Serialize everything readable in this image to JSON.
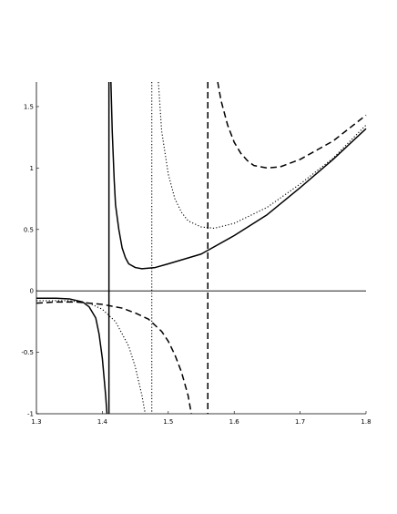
{
  "chart_data": {
    "type": "line",
    "title": "",
    "xlabel": "",
    "ylabel": "",
    "xlim": [
      1.3,
      1.8
    ],
    "ylim": [
      -1,
      1.7
    ],
    "x_ticks": [
      {
        "value": 1.3,
        "label": "1.3"
      },
      {
        "value": 1.4,
        "label": "1.4"
      },
      {
        "value": 1.5,
        "label": "1.5"
      },
      {
        "value": 1.6,
        "label": "1.6"
      },
      {
        "value": 1.7,
        "label": "1.7"
      },
      {
        "value": 1.8,
        "label": "1.8"
      }
    ],
    "y_ticks": [
      {
        "value": -1,
        "label": "-1"
      },
      {
        "value": -0.5,
        "label": "-0.5"
      },
      {
        "value": 0,
        "label": "0"
      },
      {
        "value": 0.5,
        "label": "0.5"
      },
      {
        "value": 1,
        "label": "1"
      },
      {
        "value": 1.5,
        "label": "1.5"
      }
    ],
    "grid": false,
    "legend": "none",
    "series": [
      {
        "style": "solid",
        "asymptote": 1.41,
        "left_branch": [
          [
            1.3,
            -0.06
          ],
          [
            1.33,
            -0.06
          ],
          [
            1.35,
            -0.065
          ],
          [
            1.37,
            -0.09
          ],
          [
            1.38,
            -0.13
          ],
          [
            1.39,
            -0.22
          ],
          [
            1.395,
            -0.35
          ],
          [
            1.4,
            -0.55
          ],
          [
            1.405,
            -0.85
          ],
          [
            1.407,
            -1.0
          ]
        ],
        "right_branch": [
          [
            1.413,
            1.7
          ],
          [
            1.415,
            1.3
          ],
          [
            1.418,
            0.9
          ],
          [
            1.42,
            0.7
          ],
          [
            1.425,
            0.5
          ],
          [
            1.43,
            0.35
          ],
          [
            1.435,
            0.27
          ],
          [
            1.44,
            0.22
          ],
          [
            1.45,
            0.19
          ],
          [
            1.46,
            0.18
          ],
          [
            1.48,
            0.19
          ],
          [
            1.5,
            0.22
          ],
          [
            1.55,
            0.3
          ],
          [
            1.6,
            0.45
          ],
          [
            1.65,
            0.62
          ],
          [
            1.7,
            0.84
          ],
          [
            1.75,
            1.07
          ],
          [
            1.8,
            1.32
          ]
        ]
      },
      {
        "style": "dotted",
        "asymptote": 1.475,
        "left_branch": [
          [
            1.3,
            -0.08
          ],
          [
            1.35,
            -0.08
          ],
          [
            1.38,
            -0.1
          ],
          [
            1.4,
            -0.15
          ],
          [
            1.42,
            -0.25
          ],
          [
            1.44,
            -0.45
          ],
          [
            1.45,
            -0.62
          ],
          [
            1.46,
            -0.85
          ],
          [
            1.465,
            -1.0
          ]
        ],
        "right_branch": [
          [
            1.485,
            1.7
          ],
          [
            1.49,
            1.3
          ],
          [
            1.5,
            0.95
          ],
          [
            1.51,
            0.75
          ],
          [
            1.52,
            0.64
          ],
          [
            1.53,
            0.57
          ],
          [
            1.55,
            0.52
          ],
          [
            1.57,
            0.51
          ],
          [
            1.6,
            0.55
          ],
          [
            1.65,
            0.68
          ],
          [
            1.7,
            0.87
          ],
          [
            1.75,
            1.08
          ],
          [
            1.8,
            1.35
          ]
        ]
      },
      {
        "style": "dashed",
        "asymptote": 1.56,
        "left_branch": [
          [
            1.3,
            -0.1
          ],
          [
            1.33,
            -0.09
          ],
          [
            1.36,
            -0.09
          ],
          [
            1.4,
            -0.11
          ],
          [
            1.43,
            -0.14
          ],
          [
            1.45,
            -0.18
          ],
          [
            1.47,
            -0.23
          ],
          [
            1.49,
            -0.33
          ],
          [
            1.5,
            -0.41
          ],
          [
            1.51,
            -0.52
          ],
          [
            1.52,
            -0.66
          ],
          [
            1.53,
            -0.85
          ],
          [
            1.535,
            -1.0
          ]
        ],
        "right_branch": [
          [
            1.575,
            1.7
          ],
          [
            1.58,
            1.55
          ],
          [
            1.59,
            1.35
          ],
          [
            1.6,
            1.21
          ],
          [
            1.61,
            1.12
          ],
          [
            1.62,
            1.06
          ],
          [
            1.63,
            1.02
          ],
          [
            1.65,
            1.0
          ],
          [
            1.67,
            1.01
          ],
          [
            1.7,
            1.07
          ],
          [
            1.75,
            1.22
          ],
          [
            1.8,
            1.43
          ]
        ]
      }
    ]
  }
}
